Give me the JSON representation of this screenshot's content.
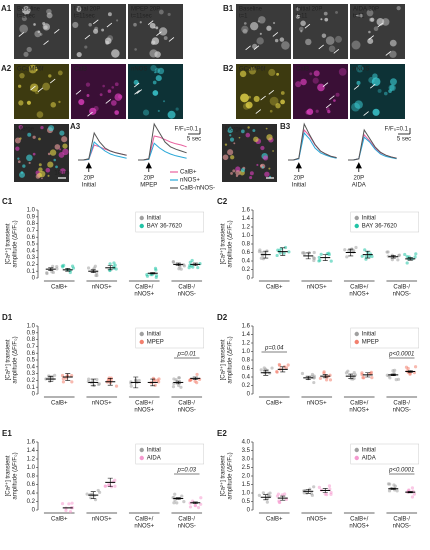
{
  "panels": {
    "A1": {
      "label": "A1",
      "captions": [
        [
          "Baseline",
          "t=1sec"
        ],
        [
          "Initial 20P",
          "t=11sec"
        ],
        [
          "MPEP 20P",
          "t=11sec"
        ]
      ]
    },
    "A2": {
      "label": "A2",
      "captions": [
        "GCaMP6f",
        "CalB",
        "nNOS"
      ]
    },
    "A_merge": {
      "caption": "Merge",
      "scale": "10μm"
    },
    "A3": {
      "label": "A3",
      "scale_y": "F/F₀=0.1",
      "scale_x": "5 sec",
      "stimuli": [
        [
          "20P",
          "Initial"
        ],
        [
          "20P",
          "MPEP"
        ]
      ],
      "traces": [
        {
          "name": "CalB+",
          "color": "#e8609e",
          "values": [
            0,
            0,
            0.01,
            0.25,
            0.22,
            0.18,
            0.15,
            0.12,
            0.1,
            0.08,
            null,
            0,
            0,
            0.02,
            0.4,
            0.38,
            0.34,
            0.3,
            0.27,
            0.25,
            0.22
          ]
        },
        {
          "name": "nNOS+",
          "color": "#2aa8d8",
          "values": [
            0,
            0,
            0.01,
            0.3,
            0.22,
            0.15,
            0.1,
            0.07,
            0.05,
            0.03,
            null,
            0,
            0,
            0.01,
            0.28,
            0.2,
            0.14,
            0.1,
            0.07,
            0.05,
            0.03
          ]
        },
        {
          "name": "CalB-/nNOS-",
          "color": "#555555",
          "values": [
            0,
            0,
            0.02,
            0.45,
            0.3,
            0.2,
            0.15,
            0.12,
            0.1,
            0.08,
            null,
            0,
            0,
            0.02,
            0.6,
            0.45,
            0.3,
            0.22,
            0.18,
            0.15,
            0.12
          ]
        }
      ]
    },
    "B1": {
      "label": "B1",
      "captions": [
        [
          "Baseline",
          "t=1"
        ],
        [
          "Initial 20P",
          "t=11"
        ],
        [
          "AIDA 20P",
          "t=11"
        ]
      ]
    },
    "B2": {
      "label": "B2",
      "captions": [
        "GCaMP6f",
        "CalB",
        "nNOS"
      ]
    },
    "B_merge": {
      "caption": "Merge"
    },
    "B3": {
      "label": "B3",
      "scale_y": "F/F₀=0.1",
      "scale_x": "5 sec",
      "stimuli": [
        [
          "20P",
          "Initial"
        ],
        [
          "20P",
          "AIDA"
        ]
      ],
      "traces": [
        {
          "color": "#e8609e",
          "values": [
            0,
            0,
            0.02,
            0.5,
            0.4,
            0.25,
            0.15,
            0.1,
            0.06,
            0.04,
            null,
            0,
            0,
            0.02,
            0.42,
            0.32,
            0.2,
            0.12,
            0.08,
            0.05,
            0.03
          ]
        },
        {
          "color": "#2aa8d8",
          "values": [
            0,
            0,
            0.02,
            0.45,
            0.35,
            0.2,
            0.12,
            0.08,
            0.05,
            0.03,
            null,
            0,
            0,
            0.02,
            0.38,
            0.3,
            0.18,
            0.1,
            0.06,
            0.04,
            0.02
          ]
        },
        {
          "color": "#555555",
          "values": [
            0,
            0,
            0.03,
            0.6,
            0.42,
            0.26,
            0.15,
            0.1,
            0.06,
            0.04,
            null,
            0,
            0,
            0.02,
            0.5,
            0.36,
            0.22,
            0.13,
            0.08,
            0.05,
            0.03
          ]
        }
      ]
    }
  },
  "charts": [
    {
      "label": "C1",
      "ylabel": [
        "[Ca²⁺] transient",
        "amplitude (ΔF/F₀)"
      ],
      "categories": [
        [
          "CalB+"
        ],
        [
          "nNOS+"
        ],
        [
          "CalB+/",
          "nNOS+"
        ],
        [
          "CalB-/",
          "nNOS-"
        ]
      ],
      "series": [
        {
          "name": "Initial",
          "color": "#a0a0a0",
          "values": [
            0.13,
            0.1,
            null,
            0.2
          ],
          "errors": [
            0.02,
            0.02,
            null,
            0.02
          ]
        },
        {
          "name": "BAY 36-7620",
          "color": "#22c4a6",
          "values": [
            0.12,
            0.15,
            0.07,
            0.2
          ],
          "errors": [
            0.02,
            0.03,
            0.01,
            0.02
          ]
        }
      ],
      "ylim": [
        0,
        1.0
      ],
      "yticks": [
        0,
        0.1,
        0.2,
        0.3,
        0.4,
        0.5,
        0.6,
        0.7,
        0.8,
        0.9,
        {
          "value": 1.0,
          "label": "1.0"
        }
      ],
      "annotations": []
    },
    {
      "label": "C2",
      "ylabel": [
        "[Ca²⁺] transient",
        "amplitude (ΔF/F₀)"
      ],
      "categories": [
        [
          "CalB+"
        ],
        [
          "nNOS+"
        ],
        [
          "CalB+/",
          "nNOS+"
        ],
        [
          "CalB-/",
          "nNOS-"
        ]
      ],
      "series": [
        {
          "name": "Initial",
          "color": "#a0a0a0",
          "values": [
            0.55,
            0.52,
            0.6,
            0.5
          ],
          "errors": [
            0.08,
            0.07,
            0.08,
            0.03
          ]
        },
        {
          "name": "BAY 36-7620",
          "color": "#22c4a6",
          "values": [
            0.62,
            0.48,
            0.55,
            0.45
          ],
          "errors": [
            0.09,
            0.07,
            0.08,
            0.03
          ]
        }
      ],
      "ylim": [
        0,
        1.6
      ],
      "yticks": [
        0,
        0.2,
        0.4,
        0.6,
        0.8,
        {
          "value": 1.0,
          "label": "1.0"
        },
        1.2,
        1.4,
        1.6
      ],
      "annotations": []
    },
    {
      "label": "D1",
      "ylabel": [
        "[Ca²⁺] transient",
        "amplitude (ΔF/F₀)"
      ],
      "categories": [
        [
          "CalB+"
        ],
        [
          "nNOS+"
        ],
        [
          "CalB+/",
          "nNOS+"
        ],
        [
          "CalB-/",
          "nNOS-"
        ]
      ],
      "series": [
        {
          "name": "Initial",
          "color": "#a0a0a0",
          "values": [
            0.22,
            0.17,
            0.17,
            0.17
          ],
          "errors": [
            0.04,
            0.05,
            0.08,
            0.02
          ]
        },
        {
          "name": "MPEP",
          "color": "#f2806e",
          "values": [
            0.25,
            0.18,
            0.17,
            0.23
          ],
          "errors": [
            0.05,
            0.05,
            0.05,
            0.02
          ]
        }
      ],
      "ylim": [
        0,
        1.0
      ],
      "yticks": [
        0,
        0.1,
        0.2,
        0.3,
        0.4,
        0.5,
        0.6,
        0.7,
        0.8,
        0.9,
        {
          "value": 1.0,
          "label": "1.0"
        }
      ],
      "annotations": [
        "p=0.01"
      ]
    },
    {
      "label": "D2",
      "ylabel": [
        "[Ca²⁺] transient",
        "amplitude (ΔF/F₀)"
      ],
      "categories": [
        [
          "CalB+"
        ],
        [
          "nNOS+"
        ],
        [
          "CalB+/",
          "nNOS+"
        ],
        [
          "CalB-/",
          "nNOS-"
        ]
      ],
      "series": [
        {
          "name": "Initial",
          "color": "#a0a0a0",
          "values": [
            0.5,
            0.38,
            0.42,
            0.45
          ],
          "errors": [
            0.06,
            0.04,
            0.05,
            0.02
          ]
        },
        {
          "name": "MPEP",
          "color": "#f2806e",
          "values": [
            0.58,
            0.42,
            0.45,
            0.53
          ],
          "errors": [
            0.06,
            0.04,
            0.05,
            0.02
          ]
        }
      ],
      "ylim": [
        0,
        1.6
      ],
      "yticks": [
        0,
        0.2,
        0.4,
        0.6,
        0.8,
        {
          "value": 1.0,
          "label": "1.0"
        },
        1.2,
        1.4,
        1.6
      ],
      "annotations": [
        "p=0.04",
        "p<0.0001"
      ]
    },
    {
      "label": "E1",
      "ylabel": [
        "[Ca²⁺] transient",
        "amplitude (ΔF/F₀)"
      ],
      "categories": [
        [
          "CalB+"
        ],
        [
          "nNOS+"
        ],
        [
          "CalB+/",
          "nNOS+"
        ],
        [
          "CalB-/",
          "nNOS-"
        ]
      ],
      "series": [
        {
          "name": "Initial",
          "color": "#a0a0a0",
          "values": [
            null,
            0.35,
            null,
            0.27
          ],
          "errors": [
            null,
            0.08,
            null,
            0.02
          ]
        },
        {
          "name": "AIDA",
          "color": "#f59ad0",
          "values": [
            0.05,
            0.65,
            null,
            0.17
          ],
          "errors": [
            null,
            0.1,
            null,
            0.02
          ]
        }
      ],
      "ylim": [
        0,
        1.6
      ],
      "yticks": [
        0,
        0.2,
        0.4,
        0.6,
        0.8,
        {
          "value": 1.0,
          "label": "1.0"
        },
        1.2,
        1.4,
        1.6
      ],
      "annotations": [
        "p=0.03"
      ]
    },
    {
      "label": "E2",
      "ylabel": [
        "[Ca²⁺] transient",
        "amplitude (ΔF/F₀)"
      ],
      "categories": [
        [
          "CalB+"
        ],
        [
          "nNOS+"
        ],
        [
          "CalB+/",
          "nNOS+"
        ],
        [
          "CalB-/",
          "nNOS-"
        ]
      ],
      "series": [
        {
          "name": "Initial",
          "color": "#a0a0a0",
          "values": [
            0.75,
            1.1,
            null,
            1.25
          ],
          "errors": [
            0.15,
            0.12,
            null,
            0.04
          ]
        },
        {
          "name": "AIDA",
          "color": "#f59ad0",
          "values": [
            0.7,
            1.15,
            null,
            1.05
          ],
          "errors": [
            0.12,
            0.12,
            null,
            0.04
          ]
        }
      ],
      "ylim": [
        0,
        4.0
      ],
      "yticks": [
        0,
        0.5,
        {
          "value": 1.0,
          "label": "1.0"
        },
        1.5,
        {
          "value": 2.0,
          "label": "2.0"
        },
        2.5,
        {
          "value": 3.0,
          "label": "3.0"
        },
        3.5,
        {
          "value": 4.0,
          "label": "4.0"
        }
      ],
      "annotations": [
        "p<0.0001"
      ]
    }
  ]
}
